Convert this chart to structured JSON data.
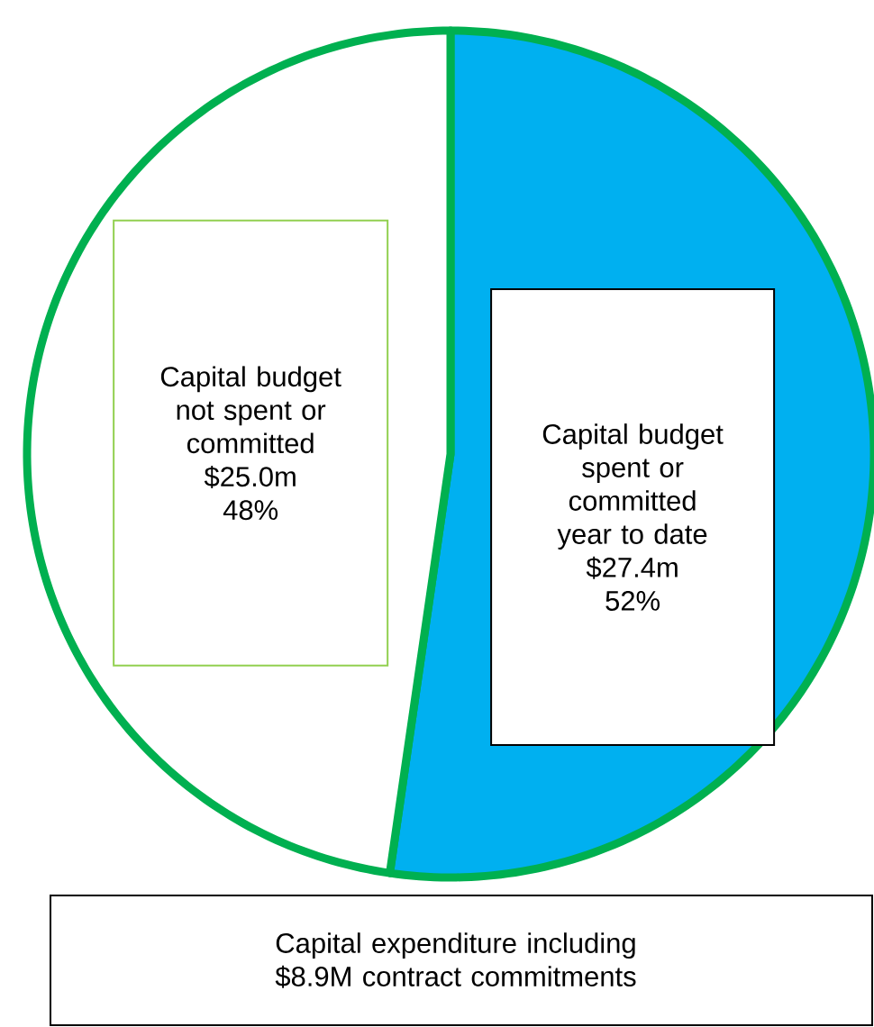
{
  "chart_data": {
    "type": "pie",
    "title": "Capital expenditure including $8.9M contract commitments",
    "categories": [
      "Capital budget spent or committed year to date",
      "Capital budget not spent or committed"
    ],
    "values": [
      27.4,
      25.0
    ],
    "colors": [
      "#00b0f0",
      "#ffffff"
    ],
    "value_labels": [
      "$27.4m",
      "$25.0m"
    ],
    "annotations": [
      "52%",
      "48%"
    ]
  }
}
